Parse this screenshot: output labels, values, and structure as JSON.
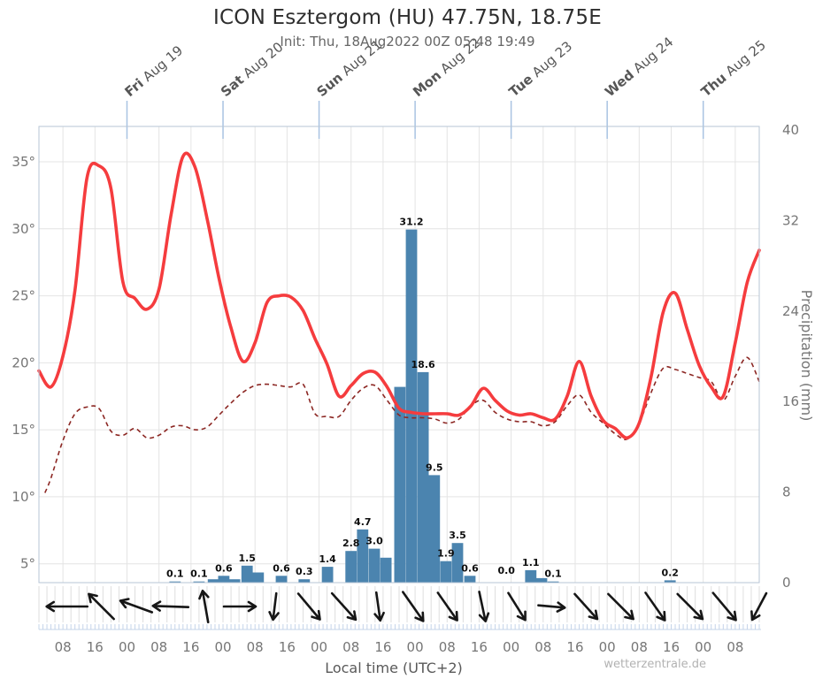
{
  "header": {
    "title": "ICON Esztergom (HU) 47.75N, 18.75E",
    "subtitle": "Init: Thu, 18Aug2022 00Z 05:48 19:49"
  },
  "footer": {
    "xlabel": "Local time (UTC+2)",
    "watermark": "wetterzentrale.de"
  },
  "colors": {
    "temperature": "#f53c3e",
    "dewpoint": "#8c2723",
    "bars": "#4b84af",
    "grid": "#e4e4e4",
    "border": "#b7c6d5",
    "day_tick": "#a9c3e2",
    "minor_tick": "#c5d4e9",
    "strip_sep": "#dedede",
    "arrow": "#161616",
    "bar_label": "#0d0d0d",
    "axis_text": "#767676"
  },
  "chart_data": {
    "type": "meteogram: line (temperature, dewpoint) + bar (precipitation) + wind arrows",
    "time": {
      "origin": "Thu 18 Aug 2022 02:00 local (UTC+2), model init 00Z",
      "span_hours": 180,
      "x_tick_labels_note": "hours local time, every 8 h"
    },
    "x_ticks": [
      {
        "t": 6,
        "label": "08"
      },
      {
        "t": 14,
        "label": "16"
      },
      {
        "t": 22,
        "label": "00"
      },
      {
        "t": 30,
        "label": "08"
      },
      {
        "t": 38,
        "label": "16"
      },
      {
        "t": 46,
        "label": "00"
      },
      {
        "t": 54,
        "label": "08"
      },
      {
        "t": 62,
        "label": "16"
      },
      {
        "t": 70,
        "label": "00"
      },
      {
        "t": 78,
        "label": "08"
      },
      {
        "t": 86,
        "label": "16"
      },
      {
        "t": 94,
        "label": "00"
      },
      {
        "t": 102,
        "label": "08"
      },
      {
        "t": 110,
        "label": "16"
      },
      {
        "t": 118,
        "label": "00"
      },
      {
        "t": 126,
        "label": "08"
      },
      {
        "t": 134,
        "label": "16"
      },
      {
        "t": 142,
        "label": "00"
      },
      {
        "t": 150,
        "label": "08"
      },
      {
        "t": 158,
        "label": "16"
      },
      {
        "t": 166,
        "label": "00"
      },
      {
        "t": 174,
        "label": "08"
      }
    ],
    "days": [
      {
        "day": "Fri",
        "date": "Aug 19",
        "t": 22
      },
      {
        "day": "Sat",
        "date": "Aug 20",
        "t": 46
      },
      {
        "day": "Sun",
        "date": "Aug 21",
        "t": 70
      },
      {
        "day": "Mon",
        "date": "Aug 22",
        "t": 94
      },
      {
        "day": "Tue",
        "date": "Aug 23",
        "t": 118
      },
      {
        "day": "Wed",
        "date": "Aug 24",
        "t": 142
      },
      {
        "day": "Thu",
        "date": "Aug 25",
        "t": 166
      }
    ],
    "y_left": {
      "unit": "°",
      "ticks": [
        5,
        10,
        15,
        20,
        25,
        30,
        35
      ],
      "range_shown": [
        3.7,
        37.6
      ]
    },
    "y_right": {
      "label": "Precipitation (mm)",
      "ticks": [
        0,
        8,
        16,
        24,
        32,
        40
      ],
      "range": [
        0,
        40
      ]
    },
    "temperature_c": [
      [
        0,
        19.4
      ],
      [
        3,
        18.2
      ],
      [
        6,
        20.5
      ],
      [
        9,
        25.4
      ],
      [
        12,
        33.8
      ],
      [
        15,
        34.7
      ],
      [
        18,
        33.0
      ],
      [
        21,
        26.0
      ],
      [
        24,
        24.8
      ],
      [
        27,
        24.0
      ],
      [
        30,
        25.5
      ],
      [
        33,
        31.0
      ],
      [
        36,
        35.4
      ],
      [
        39,
        34.6
      ],
      [
        42,
        30.8
      ],
      [
        45,
        26.3
      ],
      [
        48,
        22.6
      ],
      [
        51,
        20.1
      ],
      [
        54,
        21.5
      ],
      [
        57,
        24.5
      ],
      [
        60,
        25.0
      ],
      [
        63,
        24.9
      ],
      [
        66,
        23.9
      ],
      [
        69,
        21.8
      ],
      [
        72,
        19.9
      ],
      [
        75,
        17.5
      ],
      [
        78,
        18.3
      ],
      [
        81,
        19.2
      ],
      [
        84,
        19.3
      ],
      [
        87,
        18.2
      ],
      [
        90,
        16.6
      ],
      [
        93,
        16.3
      ],
      [
        96,
        16.2
      ],
      [
        99,
        16.2
      ],
      [
        102,
        16.2
      ],
      [
        105,
        16.1
      ],
      [
        108,
        16.8
      ],
      [
        111,
        18.1
      ],
      [
        114,
        17.2
      ],
      [
        117,
        16.4
      ],
      [
        120,
        16.1
      ],
      [
        123,
        16.2
      ],
      [
        126,
        15.9
      ],
      [
        129,
        15.8
      ],
      [
        132,
        17.5
      ],
      [
        135,
        20.1
      ],
      [
        138,
        17.5
      ],
      [
        141,
        15.7
      ],
      [
        144,
        15.1
      ],
      [
        147,
        14.4
      ],
      [
        150,
        15.5
      ],
      [
        153,
        19.0
      ],
      [
        156,
        23.8
      ],
      [
        159,
        25.2
      ],
      [
        162,
        22.5
      ],
      [
        165,
        19.8
      ],
      [
        168,
        18.2
      ],
      [
        171,
        17.5
      ],
      [
        174,
        21.5
      ],
      [
        177,
        26.0
      ],
      [
        180,
        28.4
      ]
    ],
    "dewpoint_c": [
      [
        1.5,
        10.3
      ],
      [
        3,
        11.4
      ],
      [
        6,
        14.2
      ],
      [
        9,
        16.2
      ],
      [
        12,
        16.7
      ],
      [
        15,
        16.6
      ],
      [
        18,
        14.9
      ],
      [
        21,
        14.6
      ],
      [
        24,
        15.1
      ],
      [
        27,
        14.4
      ],
      [
        30,
        14.6
      ],
      [
        33,
        15.2
      ],
      [
        36,
        15.3
      ],
      [
        39,
        15.0
      ],
      [
        42,
        15.2
      ],
      [
        45,
        16.1
      ],
      [
        48,
        17.0
      ],
      [
        51,
        17.8
      ],
      [
        54,
        18.3
      ],
      [
        57,
        18.4
      ],
      [
        60,
        18.3
      ],
      [
        63,
        18.2
      ],
      [
        66,
        18.4
      ],
      [
        69,
        16.2
      ],
      [
        72,
        16.0
      ],
      [
        75,
        16.0
      ],
      [
        78,
        17.2
      ],
      [
        81,
        18.1
      ],
      [
        84,
        18.3
      ],
      [
        87,
        17.2
      ],
      [
        90,
        16.1
      ],
      [
        93,
        15.9
      ],
      [
        96,
        15.9
      ],
      [
        99,
        15.8
      ],
      [
        102,
        15.5
      ],
      [
        105,
        15.8
      ],
      [
        108,
        16.8
      ],
      [
        111,
        17.2
      ],
      [
        114,
        16.3
      ],
      [
        117,
        15.8
      ],
      [
        120,
        15.6
      ],
      [
        123,
        15.6
      ],
      [
        126,
        15.3
      ],
      [
        129,
        15.6
      ],
      [
        132,
        16.8
      ],
      [
        135,
        17.6
      ],
      [
        138,
        16.3
      ],
      [
        141,
        15.5
      ],
      [
        144,
        14.7
      ],
      [
        147,
        14.3
      ],
      [
        150,
        15.5
      ],
      [
        153,
        17.8
      ],
      [
        156,
        19.6
      ],
      [
        159,
        19.5
      ],
      [
        162,
        19.2
      ],
      [
        165,
        18.9
      ],
      [
        168,
        18.6
      ],
      [
        171,
        17.2
      ],
      [
        174,
        19.0
      ],
      [
        177,
        20.4
      ],
      [
        180,
        18.6
      ]
    ],
    "precip_mm": [
      {
        "t": 34,
        "v": 0.1,
        "label": "0.1"
      },
      {
        "t": 40,
        "v": 0.1,
        "label": "0.1"
      },
      {
        "t": 43.6,
        "v": 0.3,
        "label": ""
      },
      {
        "t": 46.2,
        "v": 0.6,
        "label": "0.6"
      },
      {
        "t": 48.9,
        "v": 0.3,
        "label": ""
      },
      {
        "t": 52,
        "v": 1.5,
        "label": "1.5"
      },
      {
        "t": 54.8,
        "v": 0.9,
        "label": ""
      },
      {
        "t": 60.6,
        "v": 0.6,
        "label": "0.6"
      },
      {
        "t": 66.3,
        "v": 0.3,
        "label": "0.3"
      },
      {
        "t": 72.1,
        "v": 1.4,
        "label": "1.4"
      },
      {
        "t": 78,
        "v": 2.8,
        "label": "2.8"
      },
      {
        "t": 80.9,
        "v": 4.7,
        "label": "4.7"
      },
      {
        "t": 83.8,
        "v": 3.0,
        "label": "3.0"
      },
      {
        "t": 86.7,
        "v": 2.2,
        "label": ""
      },
      {
        "t": 90.2,
        "v": 17.3,
        "label": ""
      },
      {
        "t": 93.1,
        "v": 31.2,
        "label": "31.2"
      },
      {
        "t": 96,
        "v": 18.6,
        "label": "18.6"
      },
      {
        "t": 98.8,
        "v": 9.5,
        "label": "9.5"
      },
      {
        "t": 101.7,
        "v": 1.9,
        "label": "1.9"
      },
      {
        "t": 104.6,
        "v": 3.5,
        "label": "3.5"
      },
      {
        "t": 107.7,
        "v": 0.6,
        "label": "0.6"
      },
      {
        "t": 116.8,
        "v": 0.0,
        "label": "0.0"
      },
      {
        "t": 122.9,
        "v": 1.1,
        "label": "1.1"
      },
      {
        "t": 125.6,
        "v": 0.4,
        "label": ""
      },
      {
        "t": 128.5,
        "v": 0.1,
        "label": "0.1"
      },
      {
        "t": 157.7,
        "v": 0.2,
        "label": "0.2"
      }
    ],
    "wind_arrows": [
      {
        "t": 7,
        "a": 180,
        "len": 46
      },
      {
        "t": 15.6,
        "a": -135,
        "len": 40
      },
      {
        "t": 24.3,
        "a": -160,
        "len": 38
      },
      {
        "t": 32.9,
        "a": -178,
        "len": 40
      },
      {
        "t": 41.6,
        "a": -100,
        "len": 36
      },
      {
        "t": 50.2,
        "a": 0,
        "len": 36
      },
      {
        "t": 58.9,
        "a": 97,
        "len": 30
      },
      {
        "t": 67.5,
        "a": 50,
        "len": 38
      },
      {
        "t": 76.2,
        "a": 48,
        "len": 40
      },
      {
        "t": 84.8,
        "a": 82,
        "len": 32
      },
      {
        "t": 93.5,
        "a": 55,
        "len": 40
      },
      {
        "t": 102.1,
        "a": 55,
        "len": 38
      },
      {
        "t": 110.8,
        "a": 78,
        "len": 34
      },
      {
        "t": 119.4,
        "a": 58,
        "len": 36
      },
      {
        "t": 128.1,
        "a": 5,
        "len": 30
      },
      {
        "t": 136.7,
        "a": 48,
        "len": 38
      },
      {
        "t": 145.4,
        "a": 45,
        "len": 40
      },
      {
        "t": 154,
        "a": 55,
        "len": 38
      },
      {
        "t": 162.7,
        "a": 45,
        "len": 40
      },
      {
        "t": 171.3,
        "a": 50,
        "len": 40
      },
      {
        "t": 180,
        "a": 118,
        "len": 34
      }
    ]
  }
}
